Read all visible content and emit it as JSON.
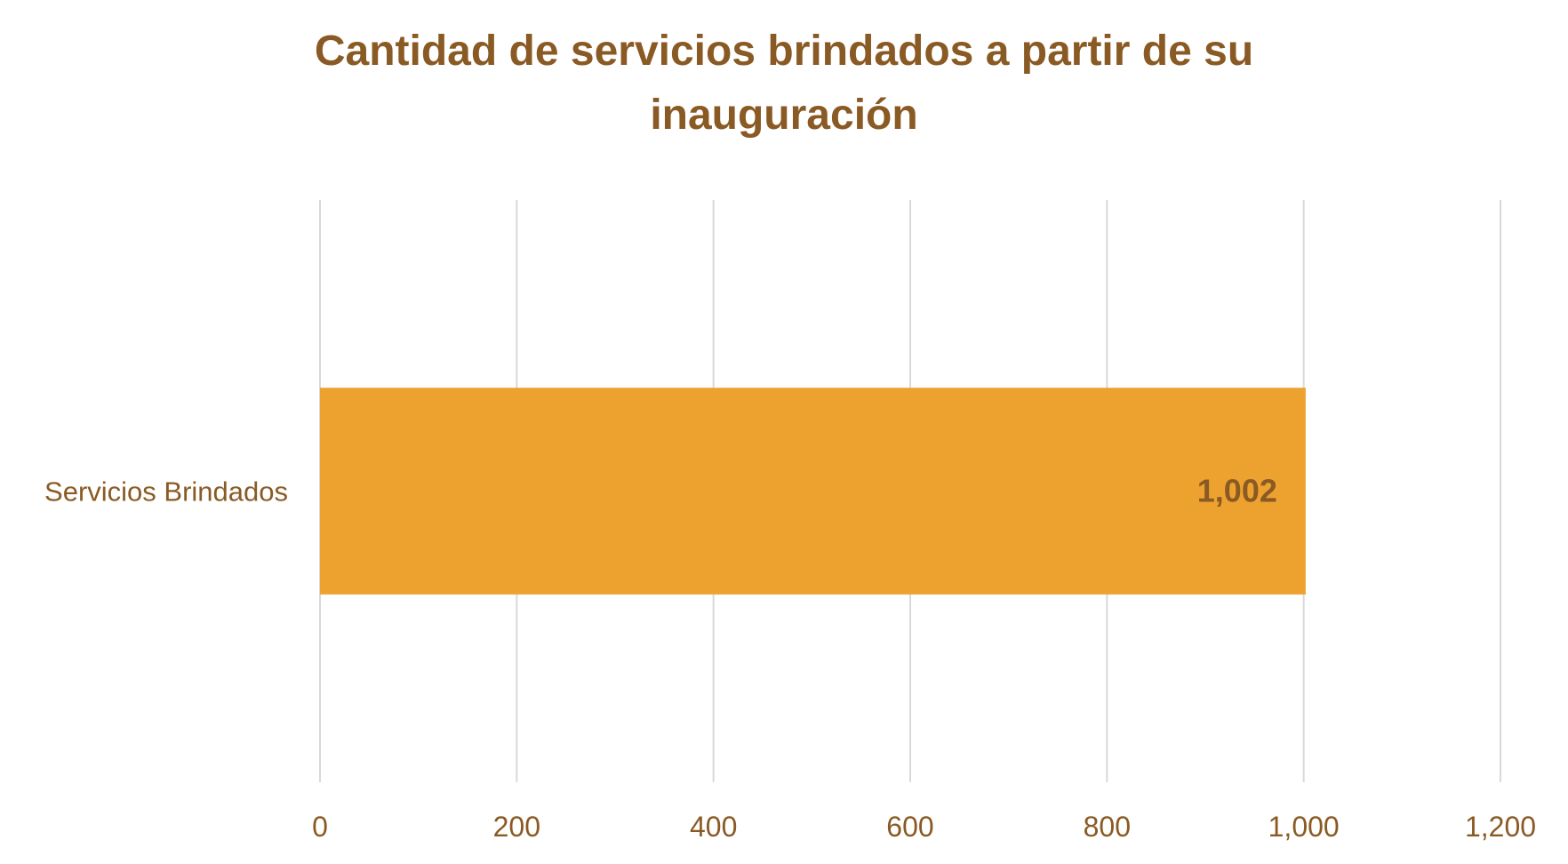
{
  "colors": {
    "title": "#8a5a24",
    "bar": "#EDA22F",
    "grid": "#d9d9d9",
    "text": "#8a5a24"
  },
  "chart_data": {
    "type": "bar",
    "orientation": "horizontal",
    "title": "Cantidad de servicios brindados a partir de su inauguración",
    "categories": [
      "Servicios Brindados"
    ],
    "values": [
      1002
    ],
    "data_labels": [
      "1,002"
    ],
    "xlim": [
      0,
      1200
    ],
    "x_ticks": [
      0,
      200,
      400,
      600,
      800,
      1000,
      1200
    ],
    "x_tick_labels": [
      "0",
      "200",
      "400",
      "600",
      "800",
      "1,000",
      "1,200"
    ],
    "grid": true,
    "legend": false
  }
}
